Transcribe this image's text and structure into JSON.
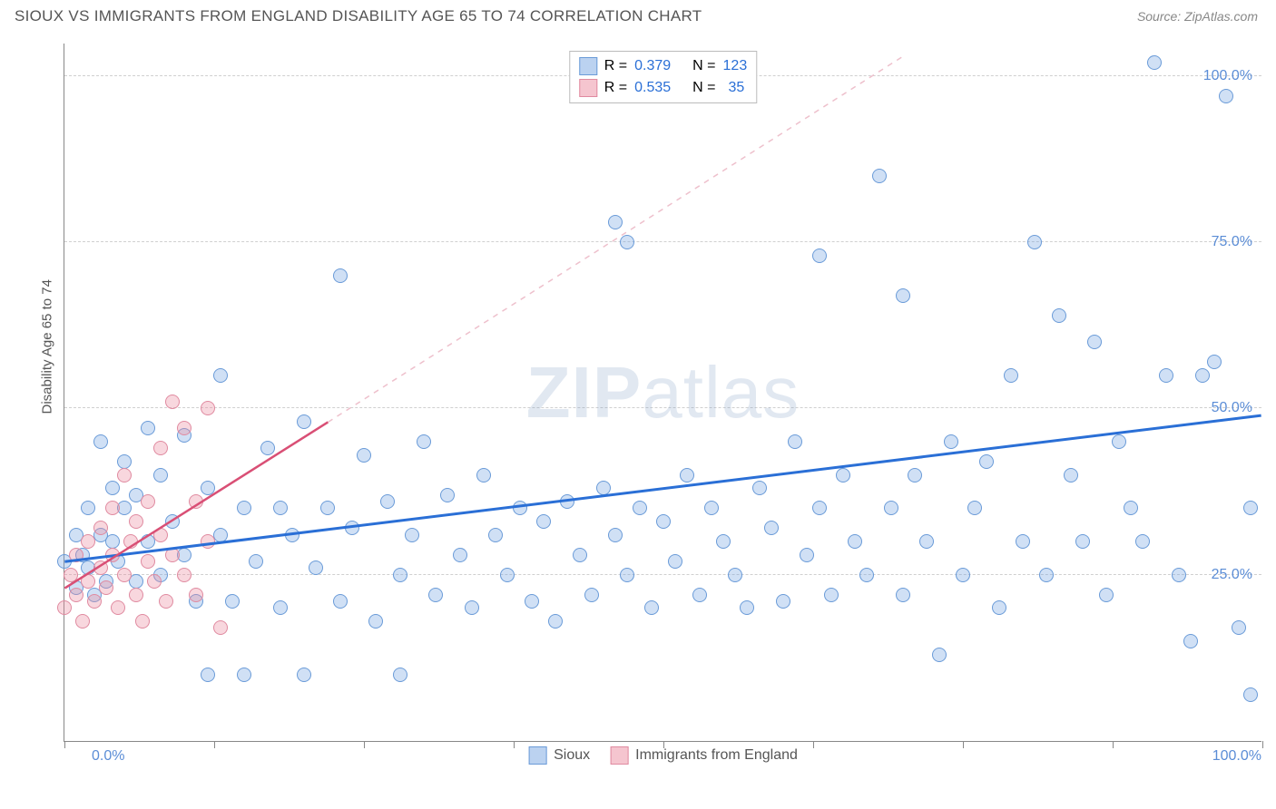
{
  "header": {
    "title": "SIOUX VS IMMIGRANTS FROM ENGLAND DISABILITY AGE 65 TO 74 CORRELATION CHART",
    "source": "Source: ZipAtlas.com"
  },
  "chart": {
    "type": "scatter",
    "ylabel": "Disability Age 65 to 74",
    "watermark": "ZIPatlas",
    "xlim": [
      0,
      100
    ],
    "ylim": [
      0,
      105
    ],
    "x_ticks": [
      0,
      12.5,
      25,
      37.5,
      50,
      62.5,
      75,
      87.5,
      100
    ],
    "y_gridlines": [
      25,
      50,
      75,
      100
    ],
    "y_tick_labels": [
      "25.0%",
      "50.0%",
      "75.0%",
      "100.0%"
    ],
    "x_start_label": "0.0%",
    "x_end_label": "100.0%",
    "background_color": "#ffffff",
    "grid_color": "#d0d0d0",
    "point_radius": 8,
    "point_stroke_width": 1.2,
    "series": [
      {
        "name": "Sioux",
        "fill": "rgba(120,165,225,0.35)",
        "stroke": "#6a9bd8",
        "R": "0.379",
        "N": "123",
        "trend": {
          "x1": 0,
          "y1": 27,
          "x2": 100,
          "y2": 49,
          "stroke": "#2a6fd6",
          "width": 3,
          "dash": "none"
        },
        "points": [
          [
            0,
            27
          ],
          [
            1,
            31
          ],
          [
            1,
            23
          ],
          [
            1.5,
            28
          ],
          [
            2,
            35
          ],
          [
            2,
            26
          ],
          [
            2.5,
            22
          ],
          [
            3,
            31
          ],
          [
            3,
            45
          ],
          [
            3.5,
            24
          ],
          [
            4,
            30
          ],
          [
            4,
            38
          ],
          [
            4.5,
            27
          ],
          [
            5,
            35
          ],
          [
            5,
            42
          ],
          [
            6,
            24
          ],
          [
            6,
            37
          ],
          [
            7,
            30
          ],
          [
            7,
            47
          ],
          [
            8,
            25
          ],
          [
            8,
            40
          ],
          [
            9,
            33
          ],
          [
            10,
            46
          ],
          [
            10,
            28
          ],
          [
            11,
            21
          ],
          [
            12,
            38
          ],
          [
            12,
            10
          ],
          [
            13,
            31
          ],
          [
            13,
            55
          ],
          [
            14,
            21
          ],
          [
            15,
            35
          ],
          [
            15,
            10
          ],
          [
            16,
            27
          ],
          [
            17,
            44
          ],
          [
            18,
            20
          ],
          [
            18,
            35
          ],
          [
            19,
            31
          ],
          [
            20,
            48
          ],
          [
            20,
            10
          ],
          [
            21,
            26
          ],
          [
            22,
            35
          ],
          [
            23,
            70
          ],
          [
            23,
            21
          ],
          [
            24,
            32
          ],
          [
            25,
            43
          ],
          [
            26,
            18
          ],
          [
            27,
            36
          ],
          [
            28,
            25
          ],
          [
            28,
            10
          ],
          [
            29,
            31
          ],
          [
            30,
            45
          ],
          [
            31,
            22
          ],
          [
            32,
            37
          ],
          [
            33,
            28
          ],
          [
            34,
            20
          ],
          [
            35,
            40
          ],
          [
            36,
            31
          ],
          [
            37,
            25
          ],
          [
            38,
            35
          ],
          [
            39,
            21
          ],
          [
            40,
            33
          ],
          [
            41,
            18
          ],
          [
            42,
            36
          ],
          [
            43,
            28
          ],
          [
            44,
            22
          ],
          [
            45,
            38
          ],
          [
            46,
            78
          ],
          [
            46,
            31
          ],
          [
            47,
            75
          ],
          [
            47,
            25
          ],
          [
            48,
            35
          ],
          [
            49,
            20
          ],
          [
            50,
            33
          ],
          [
            51,
            27
          ],
          [
            52,
            40
          ],
          [
            53,
            22
          ],
          [
            54,
            35
          ],
          [
            55,
            30
          ],
          [
            56,
            25
          ],
          [
            57,
            20
          ],
          [
            58,
            38
          ],
          [
            59,
            32
          ],
          [
            60,
            21
          ],
          [
            61,
            45
          ],
          [
            62,
            28
          ],
          [
            63,
            73
          ],
          [
            63,
            35
          ],
          [
            64,
            22
          ],
          [
            65,
            40
          ],
          [
            66,
            30
          ],
          [
            67,
            25
          ],
          [
            68,
            85
          ],
          [
            69,
            35
          ],
          [
            70,
            67
          ],
          [
            70,
            22
          ],
          [
            71,
            40
          ],
          [
            72,
            30
          ],
          [
            73,
            13
          ],
          [
            74,
            45
          ],
          [
            75,
            25
          ],
          [
            76,
            35
          ],
          [
            77,
            42
          ],
          [
            78,
            20
          ],
          [
            79,
            55
          ],
          [
            80,
            30
          ],
          [
            81,
            75
          ],
          [
            82,
            25
          ],
          [
            83,
            64
          ],
          [
            84,
            40
          ],
          [
            85,
            30
          ],
          [
            86,
            60
          ],
          [
            87,
            22
          ],
          [
            88,
            45
          ],
          [
            89,
            35
          ],
          [
            90,
            30
          ],
          [
            91,
            102
          ],
          [
            92,
            55
          ],
          [
            93,
            25
          ],
          [
            94,
            15
          ],
          [
            95,
            55
          ],
          [
            96,
            57
          ],
          [
            97,
            97
          ],
          [
            98,
            17
          ],
          [
            99,
            35
          ],
          [
            99,
            7
          ]
        ]
      },
      {
        "name": "Immigrants from England",
        "fill": "rgba(235,140,160,0.35)",
        "stroke": "#e08aa0",
        "R": "0.535",
        "N": "35",
        "trend_solid": {
          "x1": 0,
          "y1": 23,
          "x2": 22,
          "y2": 48,
          "stroke": "#d94f75",
          "width": 2.5
        },
        "trend_dash": {
          "x1": 22,
          "y1": 48,
          "x2": 70,
          "y2": 103,
          "stroke": "#eec0cc",
          "width": 1.5
        },
        "points": [
          [
            0,
            20
          ],
          [
            0.5,
            25
          ],
          [
            1,
            22
          ],
          [
            1,
            28
          ],
          [
            1.5,
            18
          ],
          [
            2,
            24
          ],
          [
            2,
            30
          ],
          [
            2.5,
            21
          ],
          [
            3,
            26
          ],
          [
            3,
            32
          ],
          [
            3.5,
            23
          ],
          [
            4,
            28
          ],
          [
            4,
            35
          ],
          [
            4.5,
            20
          ],
          [
            5,
            25
          ],
          [
            5,
            40
          ],
          [
            5.5,
            30
          ],
          [
            6,
            22
          ],
          [
            6,
            33
          ],
          [
            6.5,
            18
          ],
          [
            7,
            27
          ],
          [
            7,
            36
          ],
          [
            7.5,
            24
          ],
          [
            8,
            31
          ],
          [
            8,
            44
          ],
          [
            8.5,
            21
          ],
          [
            9,
            28
          ],
          [
            9,
            51
          ],
          [
            10,
            47
          ],
          [
            10,
            25
          ],
          [
            11,
            36
          ],
          [
            11,
            22
          ],
          [
            12,
            50
          ],
          [
            12,
            30
          ],
          [
            13,
            17
          ]
        ]
      }
    ],
    "legend_top": {
      "r_label": "R =",
      "n_label": "N =",
      "value_color": "#2a6fd6"
    },
    "legend_bottom": [
      {
        "label": "Sioux",
        "fill": "rgba(120,165,225,0.5)",
        "stroke": "#6a9bd8"
      },
      {
        "label": "Immigrants from England",
        "fill": "rgba(235,140,160,0.5)",
        "stroke": "#e08aa0"
      }
    ]
  }
}
